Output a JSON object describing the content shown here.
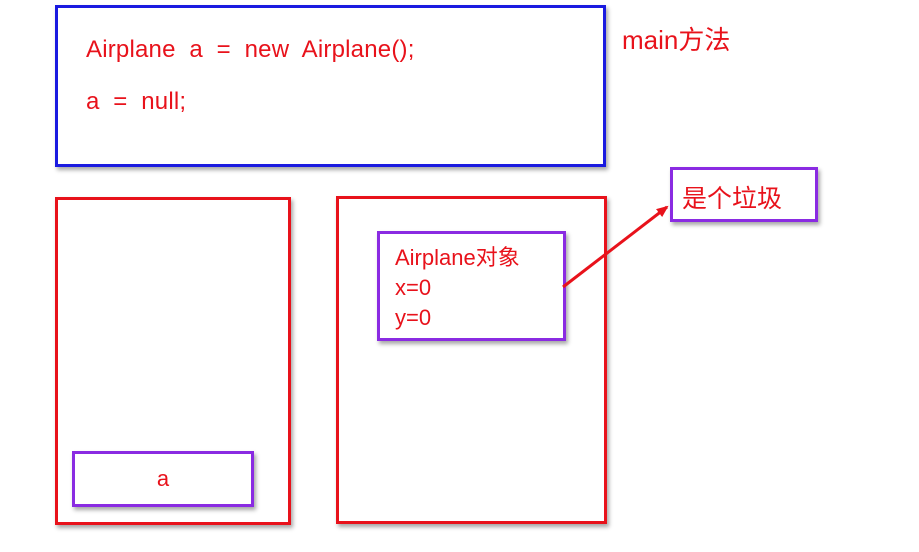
{
  "code": {
    "line1": "Airplane  a  =  new  Airplane();",
    "line2": "a  =  null;"
  },
  "method_label": "main方法",
  "stack": {
    "variable": "a"
  },
  "heap": {
    "object_title": "Airplane对象",
    "field_x": "x=0",
    "field_y": "y=0"
  },
  "annotation": "是个垃圾",
  "colors": {
    "text": "#e8121b",
    "code_border": "#1a1ae0",
    "area_border": "#e8121b",
    "item_border": "#8a2be2",
    "arrow": "#e8121b"
  }
}
